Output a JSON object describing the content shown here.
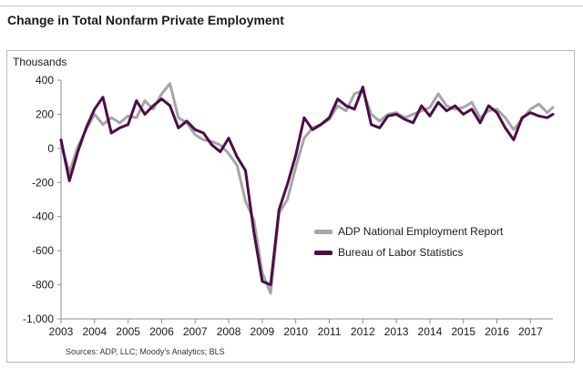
{
  "title": "Change in Total Nonfarm Private Employment",
  "source": "Sources: ADP, LLC; Moody's Analytics; BLS",
  "chart_data": {
    "type": "line",
    "title": "Change in Total Nonfarm Private Employment",
    "ylabel": "Thousands",
    "xlabel": "",
    "xlim": [
      2003,
      2017.67
    ],
    "ylim": [
      -1000,
      400
    ],
    "yticks": [
      400,
      200,
      0,
      -200,
      -400,
      -600,
      -800,
      -1000
    ],
    "ytick_labels": [
      "400",
      "200",
      "0",
      "-200",
      "-400",
      "-600",
      "-800",
      "-1,000"
    ],
    "xticks": [
      2003,
      2004,
      2005,
      2006,
      2007,
      2008,
      2009,
      2010,
      2011,
      2012,
      2013,
      2014,
      2015,
      2016,
      2017
    ],
    "grid": false,
    "legend_position": "lower-right",
    "series": [
      {
        "name": "ADP National Employment Report",
        "color": "#a6a6a6",
        "x": [
          2003.0,
          2003.25,
          2003.5,
          2003.75,
          2004.0,
          2004.25,
          2004.5,
          2004.75,
          2005.0,
          2005.25,
          2005.5,
          2005.75,
          2006.0,
          2006.25,
          2006.5,
          2006.75,
          2007.0,
          2007.25,
          2007.5,
          2007.75,
          2008.0,
          2008.25,
          2008.5,
          2008.75,
          2009.0,
          2009.25,
          2009.5,
          2009.75,
          2010.0,
          2010.25,
          2010.5,
          2010.75,
          2011.0,
          2011.25,
          2011.5,
          2011.75,
          2012.0,
          2012.25,
          2012.5,
          2012.75,
          2013.0,
          2013.25,
          2013.5,
          2013.75,
          2014.0,
          2014.25,
          2014.5,
          2014.75,
          2015.0,
          2015.25,
          2015.5,
          2015.75,
          2016.0,
          2016.25,
          2016.5,
          2016.75,
          2017.0,
          2017.25,
          2017.5,
          2017.67
        ],
        "values": [
          20,
          -140,
          10,
          110,
          200,
          140,
          180,
          150,
          190,
          180,
          280,
          230,
          320,
          380,
          180,
          150,
          80,
          50,
          40,
          20,
          -30,
          -100,
          -310,
          -420,
          -730,
          -850,
          -380,
          -300,
          -110,
          60,
          120,
          140,
          170,
          250,
          220,
          320,
          340,
          200,
          160,
          200,
          210,
          180,
          200,
          220,
          240,
          320,
          250,
          230,
          240,
          270,
          180,
          220,
          230,
          180,
          110,
          170,
          230,
          260,
          210,
          240
        ]
      },
      {
        "name": "Bureau of Labor Statistics",
        "color": "#4b0d47",
        "x": [
          2003.0,
          2003.25,
          2003.5,
          2003.75,
          2004.0,
          2004.25,
          2004.5,
          2004.75,
          2005.0,
          2005.25,
          2005.5,
          2005.75,
          2006.0,
          2006.25,
          2006.5,
          2006.75,
          2007.0,
          2007.25,
          2007.5,
          2007.75,
          2008.0,
          2008.25,
          2008.5,
          2008.75,
          2009.0,
          2009.25,
          2009.5,
          2009.75,
          2010.0,
          2010.25,
          2010.5,
          2010.75,
          2011.0,
          2011.25,
          2011.5,
          2011.75,
          2012.0,
          2012.25,
          2012.5,
          2012.75,
          2013.0,
          2013.25,
          2013.5,
          2013.75,
          2014.0,
          2014.25,
          2014.5,
          2014.75,
          2015.0,
          2015.25,
          2015.5,
          2015.75,
          2016.0,
          2016.25,
          2016.5,
          2016.75,
          2017.0,
          2017.25,
          2017.5,
          2017.67
        ],
        "values": [
          50,
          -190,
          -20,
          120,
          230,
          300,
          90,
          120,
          140,
          280,
          200,
          250,
          290,
          250,
          120,
          160,
          110,
          90,
          20,
          -20,
          60,
          -50,
          -130,
          -490,
          -780,
          -800,
          -360,
          -210,
          -40,
          180,
          110,
          140,
          180,
          290,
          250,
          230,
          360,
          140,
          120,
          190,
          200,
          170,
          150,
          250,
          190,
          270,
          220,
          250,
          200,
          230,
          150,
          250,
          210,
          120,
          50,
          180,
          210,
          190,
          180,
          200
        ]
      }
    ]
  }
}
